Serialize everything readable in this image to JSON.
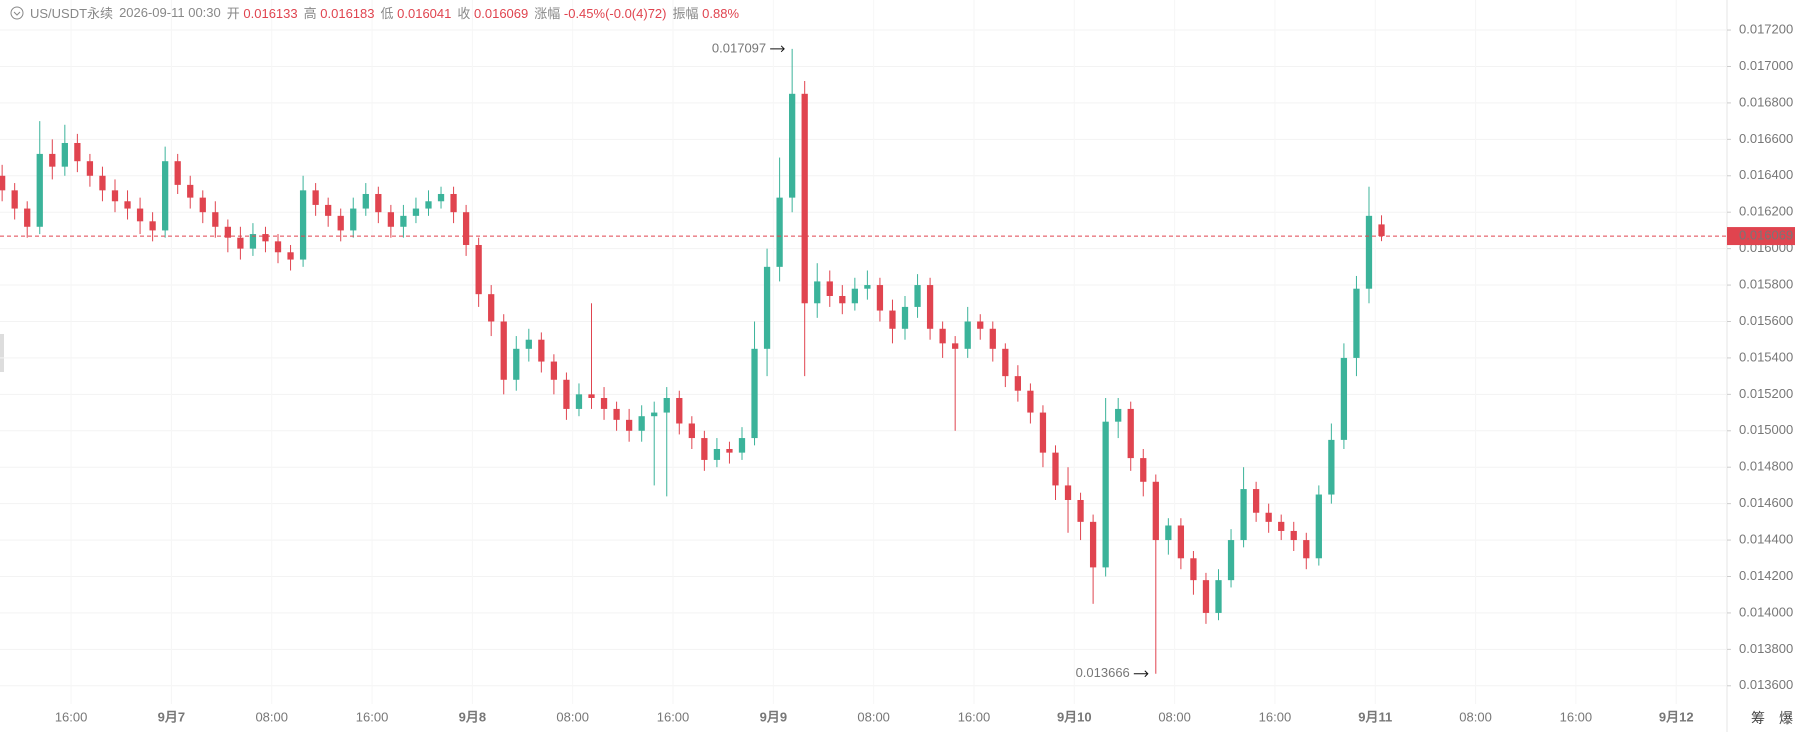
{
  "header": {
    "symbol": "US/USDT永续",
    "time": "2026-09-11 00:30",
    "open_label": "开",
    "high_label": "高",
    "low_label": "低",
    "close_label": "收",
    "change_label": "涨幅",
    "change": "-0.45%(-0.0(4)72)",
    "amplitude_label": "振幅",
    "amplitude": "0.88%"
  },
  "toolbar": [
    "筹",
    "爆"
  ],
  "chart_data": {
    "type": "candlestick",
    "up_color": "#3bb39a",
    "down_color": "#e0444f",
    "grid": true,
    "xlim": [
      10.33,
      148.05
    ],
    "ylim": [
      0.0135,
      0.017365
    ],
    "xticks": [
      {
        "value": 16,
        "label": "16:00"
      },
      {
        "value": 24,
        "label": "9月7"
      },
      {
        "value": 32,
        "label": "08:00"
      },
      {
        "value": 40,
        "label": "16:00"
      },
      {
        "value": 48,
        "label": "9月8"
      },
      {
        "value": 56,
        "label": "08:00"
      },
      {
        "value": 64,
        "label": "16:00"
      },
      {
        "value": 72,
        "label": "9月9"
      },
      {
        "value": 80,
        "label": "08:00"
      },
      {
        "value": 88,
        "label": "16:00"
      },
      {
        "value": 96,
        "label": "9月10"
      },
      {
        "value": 104,
        "label": "08:00"
      },
      {
        "value": 112,
        "label": "16:00"
      },
      {
        "value": 120,
        "label": "9月11"
      },
      {
        "value": 128,
        "label": "08:00"
      },
      {
        "value": 136,
        "label": "16:00"
      },
      {
        "value": 144,
        "label": "9月12"
      }
    ],
    "yticks": [
      {
        "value": 0.0136,
        "label": "0.013600"
      },
      {
        "value": 0.0138,
        "label": "0.013800"
      },
      {
        "value": 0.014,
        "label": "0.014000"
      },
      {
        "value": 0.0142,
        "label": "0.014200"
      },
      {
        "value": 0.0144,
        "label": "0.014400"
      },
      {
        "value": 0.0146,
        "label": "0.014600"
      },
      {
        "value": 0.0148,
        "label": "0.014800"
      },
      {
        "value": 0.015,
        "label": "0.015000"
      },
      {
        "value": 0.0152,
        "label": "0.015200"
      },
      {
        "value": 0.0154,
        "label": "0.015400"
      },
      {
        "value": 0.0156,
        "label": "0.015600"
      },
      {
        "value": 0.0158,
        "label": "0.015800"
      },
      {
        "value": 0.016,
        "label": "0.016000"
      },
      {
        "value": 0.0162,
        "label": "0.016200"
      },
      {
        "value": 0.0164,
        "label": "0.016400"
      },
      {
        "value": 0.0166,
        "label": "0.016600"
      },
      {
        "value": 0.0168,
        "label": "0.016800"
      },
      {
        "value": 0.017,
        "label": "0.017000"
      },
      {
        "value": 0.0172,
        "label": "0.017200"
      }
    ],
    "x": [
      10.5,
      11.5,
      12.5,
      13.5,
      14.5,
      15.5,
      16.5,
      17.5,
      18.5,
      19.5,
      20.5,
      21.5,
      22.5,
      23.5,
      24.5,
      25.5,
      26.5,
      27.5,
      28.5,
      29.5,
      30.5,
      31.5,
      32.5,
      33.5,
      34.5,
      35.5,
      36.5,
      37.5,
      38.5,
      39.5,
      40.5,
      41.5,
      42.5,
      43.5,
      44.5,
      45.5,
      46.5,
      47.5,
      48.5,
      49.5,
      50.5,
      51.5,
      52.5,
      53.5,
      54.5,
      55.5,
      56.5,
      57.5,
      58.5,
      59.5,
      60.5,
      61.5,
      62.5,
      63.5,
      64.5,
      65.5,
      66.5,
      67.5,
      68.5,
      69.5,
      70.5,
      71.5,
      72.5,
      73.5,
      74.5,
      75.5,
      76.5,
      77.5,
      78.5,
      79.5,
      80.5,
      81.5,
      82.5,
      83.5,
      84.5,
      85.5,
      86.5,
      87.5,
      88.5,
      89.5,
      90.5,
      91.5,
      92.5,
      93.5,
      94.5,
      95.5,
      96.5,
      97.5,
      98.5,
      99.5,
      100.5,
      101.5,
      102.5,
      103.5,
      104.5,
      105.5,
      106.5,
      107.5,
      108.5,
      109.5,
      110.5,
      111.5,
      112.5,
      113.5,
      114.5,
      115.5,
      116.5,
      117.5,
      118.5,
      119.5,
      120.5
    ],
    "open": [
      0.0164,
      0.01632,
      0.01622,
      0.01612,
      0.01652,
      0.01645,
      0.01658,
      0.01648,
      0.0164,
      0.01632,
      0.01626,
      0.01622,
      0.01615,
      0.0161,
      0.01648,
      0.01635,
      0.01628,
      0.0162,
      0.01612,
      0.01606,
      0.016,
      0.01608,
      0.01604,
      0.01598,
      0.01594,
      0.01632,
      0.01624,
      0.01618,
      0.0161,
      0.01622,
      0.0163,
      0.0162,
      0.01612,
      0.01618,
      0.01622,
      0.01626,
      0.0163,
      0.0162,
      0.01602,
      0.01575,
      0.0156,
      0.01528,
      0.01545,
      0.0155,
      0.01538,
      0.01528,
      0.01512,
      0.0152,
      0.01518,
      0.01512,
      0.01506,
      0.015,
      0.01508,
      0.0151,
      0.01518,
      0.01504,
      0.01496,
      0.01484,
      0.0149,
      0.01488,
      0.01496,
      0.01545,
      0.0159,
      0.01628,
      0.01685,
      0.0157,
      0.01582,
      0.01574,
      0.0157,
      0.01578,
      0.0158,
      0.01566,
      0.01556,
      0.01568,
      0.0158,
      0.01556,
      0.01548,
      0.01545,
      0.0156,
      0.01556,
      0.01545,
      0.0153,
      0.01522,
      0.0151,
      0.01488,
      0.0147,
      0.01462,
      0.0145,
      0.01425,
      0.01505,
      0.01512,
      0.01485,
      0.01472,
      0.0144,
      0.01448,
      0.0143,
      0.01418,
      0.014,
      0.01418,
      0.0144,
      0.01468,
      0.01455,
      0.0145,
      0.01445,
      0.0144,
      0.0143,
      0.01465,
      0.01495,
      0.0154,
      0.01578,
      0.016133
    ],
    "high": [
      0.01646,
      0.01636,
      0.01626,
      0.0167,
      0.0166,
      0.01668,
      0.01663,
      0.01652,
      0.01645,
      0.01638,
      0.01632,
      0.01628,
      0.0162,
      0.01656,
      0.01652,
      0.0164,
      0.01632,
      0.01626,
      0.01616,
      0.01612,
      0.01614,
      0.01612,
      0.01608,
      0.01602,
      0.0164,
      0.01636,
      0.01628,
      0.01622,
      0.01628,
      0.01636,
      0.01634,
      0.01624,
      0.01624,
      0.01628,
      0.01632,
      0.01634,
      0.01634,
      0.01624,
      0.01606,
      0.0158,
      0.01564,
      0.01552,
      0.01556,
      0.01554,
      0.01542,
      0.01532,
      0.01526,
      0.0157,
      0.01524,
      0.01516,
      0.01512,
      0.01514,
      0.01516,
      0.01524,
      0.01522,
      0.01508,
      0.015,
      0.01496,
      0.01494,
      0.01502,
      0.0156,
      0.016,
      0.0165,
      0.017097,
      0.01692,
      0.01592,
      0.01588,
      0.0158,
      0.01584,
      0.01588,
      0.01584,
      0.01572,
      0.01574,
      0.01586,
      0.01584,
      0.0156,
      0.01552,
      0.01568,
      0.01564,
      0.0156,
      0.01548,
      0.01536,
      0.01526,
      0.01514,
      0.01492,
      0.0148,
      0.01466,
      0.01454,
      0.01518,
      0.01518,
      0.01516,
      0.0149,
      0.01476,
      0.01452,
      0.01452,
      0.01434,
      0.01422,
      0.01424,
      0.01446,
      0.0148,
      0.01472,
      0.0146,
      0.01454,
      0.0145,
      0.01444,
      0.0147,
      0.01504,
      0.01548,
      0.01585,
      0.01634,
      0.016183
    ],
    "low": [
      0.01626,
      0.01616,
      0.01606,
      0.01608,
      0.01638,
      0.0164,
      0.01642,
      0.01634,
      0.01626,
      0.0162,
      0.01616,
      0.01608,
      0.01604,
      0.01606,
      0.0163,
      0.01622,
      0.01614,
      0.01606,
      0.01598,
      0.01594,
      0.01596,
      0.01598,
      0.01592,
      0.01588,
      0.0159,
      0.01618,
      0.01612,
      0.01604,
      0.01606,
      0.01618,
      0.01614,
      0.01606,
      0.01606,
      0.01614,
      0.01618,
      0.01622,
      0.01614,
      0.01596,
      0.01568,
      0.01552,
      0.0152,
      0.01522,
      0.01538,
      0.01532,
      0.0152,
      0.01506,
      0.01508,
      0.01512,
      0.01506,
      0.015,
      0.01494,
      0.01494,
      0.0147,
      0.01464,
      0.01498,
      0.0149,
      0.01478,
      0.0148,
      0.01482,
      0.01484,
      0.01492,
      0.0153,
      0.01582,
      0.0162,
      0.0153,
      0.01562,
      0.01568,
      0.01564,
      0.01566,
      0.01572,
      0.0156,
      0.01548,
      0.0155,
      0.01562,
      0.0155,
      0.0154,
      0.015,
      0.0154,
      0.0155,
      0.01538,
      0.01524,
      0.01516,
      0.01504,
      0.0148,
      0.01462,
      0.01444,
      0.0144,
      0.01405,
      0.0142,
      0.01496,
      0.01478,
      0.01464,
      0.013666,
      0.01432,
      0.01424,
      0.0141,
      0.01394,
      0.01396,
      0.01414,
      0.01436,
      0.0145,
      0.01444,
      0.0144,
      0.01434,
      0.01424,
      0.01426,
      0.0146,
      0.0149,
      0.0153,
      0.0157,
      0.016041
    ],
    "close": [
      0.01632,
      0.01622,
      0.01612,
      0.01652,
      0.01645,
      0.01658,
      0.01648,
      0.0164,
      0.01632,
      0.01626,
      0.01622,
      0.01615,
      0.0161,
      0.01648,
      0.01635,
      0.01628,
      0.0162,
      0.01612,
      0.01606,
      0.016,
      0.01608,
      0.01604,
      0.01598,
      0.01594,
      0.01632,
      0.01624,
      0.01618,
      0.0161,
      0.01622,
      0.0163,
      0.0162,
      0.01612,
      0.01618,
      0.01622,
      0.01626,
      0.0163,
      0.0162,
      0.01602,
      0.01575,
      0.0156,
      0.01528,
      0.01545,
      0.0155,
      0.01538,
      0.01528,
      0.01512,
      0.0152,
      0.01518,
      0.01512,
      0.01506,
      0.015,
      0.01508,
      0.0151,
      0.01518,
      0.01504,
      0.01496,
      0.01484,
      0.0149,
      0.01488,
      0.01496,
      0.01545,
      0.0159,
      0.01628,
      0.01685,
      0.0157,
      0.01582,
      0.01574,
      0.0157,
      0.01578,
      0.0158,
      0.01566,
      0.01556,
      0.01568,
      0.0158,
      0.01556,
      0.01548,
      0.01545,
      0.0156,
      0.01556,
      0.01545,
      0.0153,
      0.01522,
      0.0151,
      0.01488,
      0.0147,
      0.01462,
      0.0145,
      0.01425,
      0.01505,
      0.01512,
      0.01485,
      0.01472,
      0.0144,
      0.01448,
      0.0143,
      0.01418,
      0.014,
      0.01418,
      0.0144,
      0.01468,
      0.01455,
      0.0145,
      0.01445,
      0.0144,
      0.0143,
      0.01465,
      0.01495,
      0.0154,
      0.01578,
      0.01618,
      0.016069
    ]
  }
}
